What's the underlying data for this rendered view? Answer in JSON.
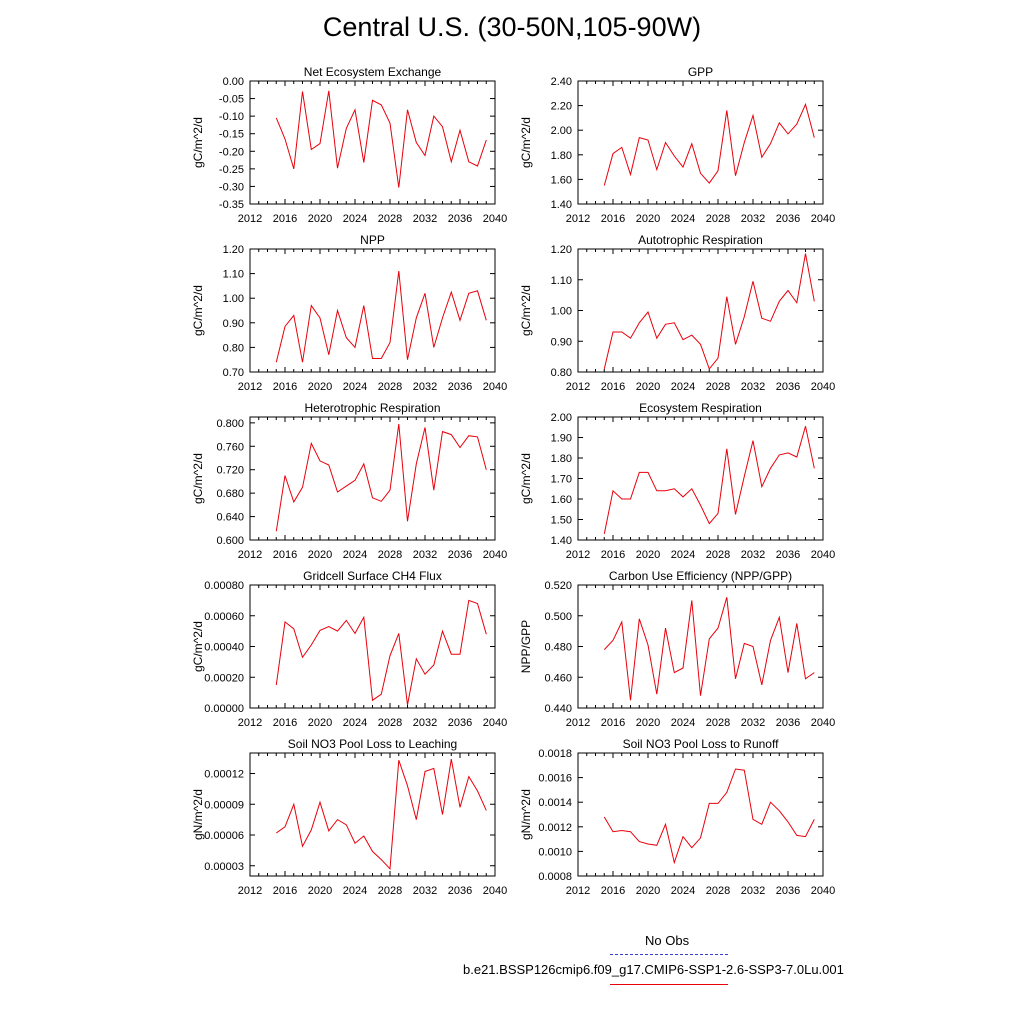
{
  "figure": {
    "title": "Central U.S. (30-50N,105-90W)",
    "series_color": "#e8000b",
    "obs_color": "#3b3bd6"
  },
  "legend": {
    "obs_label": "No Obs",
    "model_label": "b.e21.BSSP126cmip6.f09_g17.CMIP6-SSP1-2.6-SSP3-7.0Lu.001"
  },
  "chart_data": [
    {
      "type": "line",
      "title": "Net Ecosystem Exchange",
      "ylabel": "gC/m^2/d",
      "xlabel": "",
      "xlim": [
        2012,
        2040
      ],
      "xticks": [
        "2012",
        "2016",
        "2020",
        "2024",
        "2028",
        "2032",
        "2036",
        "2040"
      ],
      "ylim": [
        -0.35,
        0.0
      ],
      "yticks": [
        "0.00",
        "-0.05",
        "-0.10",
        "-0.15",
        "-0.20",
        "-0.25",
        "-0.30",
        "-0.35"
      ],
      "x": [
        2015,
        2016,
        2017,
        2018,
        2019,
        2020,
        2021,
        2022,
        2023,
        2024,
        2025,
        2026,
        2027,
        2028,
        2029,
        2030,
        2031,
        2032,
        2033,
        2034,
        2035,
        2036,
        2037,
        2038,
        2039
      ],
      "series": [
        {
          "values": [
            -0.105,
            -0.165,
            -0.25,
            -0.03,
            -0.195,
            -0.178,
            -0.028,
            -0.248,
            -0.135,
            -0.082,
            -0.232,
            -0.055,
            -0.068,
            -0.12,
            -0.303,
            -0.082,
            -0.175,
            -0.212,
            -0.1,
            -0.13,
            -0.23,
            -0.14,
            -0.23,
            -0.242,
            -0.168
          ]
        }
      ]
    },
    {
      "type": "line",
      "title": "GPP",
      "ylabel": "gC/m^2/d",
      "xlabel": "",
      "xlim": [
        2012,
        2040
      ],
      "xticks": [
        "2012",
        "2016",
        "2020",
        "2024",
        "2028",
        "2032",
        "2036",
        "2040"
      ],
      "ylim": [
        1.4,
        2.4
      ],
      "yticks": [
        "2.40",
        "2.20",
        "2.00",
        "1.80",
        "1.60",
        "1.40"
      ],
      "x": [
        2015,
        2016,
        2017,
        2018,
        2019,
        2020,
        2021,
        2022,
        2023,
        2024,
        2025,
        2026,
        2027,
        2028,
        2029,
        2030,
        2031,
        2032,
        2033,
        2034,
        2035,
        2036,
        2037,
        2038,
        2039
      ],
      "series": [
        {
          "values": [
            1.55,
            1.81,
            1.86,
            1.64,
            1.94,
            1.92,
            1.68,
            1.9,
            1.79,
            1.7,
            1.89,
            1.65,
            1.57,
            1.67,
            2.16,
            1.63,
            1.9,
            2.12,
            1.78,
            1.89,
            2.06,
            1.97,
            2.05,
            2.21,
            1.94
          ]
        }
      ]
    },
    {
      "type": "line",
      "title": "NPP",
      "ylabel": "gC/m^2/d",
      "xlabel": "",
      "xlim": [
        2012,
        2040
      ],
      "xticks": [
        "2012",
        "2016",
        "2020",
        "2024",
        "2028",
        "2032",
        "2036",
        "2040"
      ],
      "ylim": [
        0.7,
        1.2
      ],
      "yticks": [
        "1.20",
        "1.10",
        "1.00",
        "0.90",
        "0.80",
        "0.70"
      ],
      "x": [
        2015,
        2016,
        2017,
        2018,
        2019,
        2020,
        2021,
        2022,
        2023,
        2024,
        2025,
        2026,
        2027,
        2028,
        2029,
        2030,
        2031,
        2032,
        2033,
        2034,
        2035,
        2036,
        2037,
        2038,
        2039
      ],
      "series": [
        {
          "values": [
            0.74,
            0.885,
            0.93,
            0.74,
            0.97,
            0.92,
            0.77,
            0.95,
            0.84,
            0.8,
            0.97,
            0.755,
            0.755,
            0.82,
            1.11,
            0.75,
            0.92,
            1.02,
            0.8,
            0.92,
            1.025,
            0.91,
            1.02,
            1.03,
            0.91
          ]
        }
      ]
    },
    {
      "type": "line",
      "title": "Autotrophic Respiration",
      "ylabel": "gC/m^2/d",
      "xlabel": "",
      "xlim": [
        2012,
        2040
      ],
      "xticks": [
        "2012",
        "2016",
        "2020",
        "2024",
        "2028",
        "2032",
        "2036",
        "2040"
      ],
      "ylim": [
        0.8,
        1.2
      ],
      "yticks": [
        "1.20",
        "1.10",
        "1.00",
        "0.90",
        "0.80"
      ],
      "x": [
        2015,
        2016,
        2017,
        2018,
        2019,
        2020,
        2021,
        2022,
        2023,
        2024,
        2025,
        2026,
        2027,
        2028,
        2029,
        2030,
        2031,
        2032,
        2033,
        2034,
        2035,
        2036,
        2037,
        2038,
        2039
      ],
      "series": [
        {
          "values": [
            0.81,
            0.93,
            0.93,
            0.91,
            0.96,
            0.995,
            0.91,
            0.955,
            0.96,
            0.905,
            0.92,
            0.89,
            0.81,
            0.845,
            1.045,
            0.89,
            0.98,
            1.095,
            0.975,
            0.965,
            1.03,
            1.065,
            1.025,
            1.185,
            1.03
          ]
        }
      ]
    },
    {
      "type": "line",
      "title": "Heterotrophic Respiration",
      "ylabel": "gC/m^2/d",
      "xlabel": "",
      "xlim": [
        2012,
        2040
      ],
      "xticks": [
        "2012",
        "2016",
        "2020",
        "2024",
        "2028",
        "2032",
        "2036",
        "2040"
      ],
      "ylim": [
        0.6,
        0.81
      ],
      "yticks": [
        "0.800",
        "0.760",
        "0.720",
        "0.680",
        "0.640",
        "0.600"
      ],
      "x": [
        2015,
        2016,
        2017,
        2018,
        2019,
        2020,
        2021,
        2022,
        2023,
        2024,
        2025,
        2026,
        2027,
        2028,
        2029,
        2030,
        2031,
        2032,
        2033,
        2034,
        2035,
        2036,
        2037,
        2038,
        2039
      ],
      "series": [
        {
          "values": [
            0.615,
            0.71,
            0.665,
            0.69,
            0.765,
            0.735,
            0.728,
            0.682,
            0.692,
            0.702,
            0.73,
            0.672,
            0.666,
            0.685,
            0.798,
            0.632,
            0.73,
            0.792,
            0.685,
            0.785,
            0.78,
            0.758,
            0.778,
            0.776,
            0.72
          ]
        }
      ]
    },
    {
      "type": "line",
      "title": "Ecosystem Respiration",
      "ylabel": "gC/m^2/d",
      "xlabel": "",
      "xlim": [
        2012,
        2040
      ],
      "xticks": [
        "2012",
        "2016",
        "2020",
        "2024",
        "2028",
        "2032",
        "2036",
        "2040"
      ],
      "ylim": [
        1.4,
        2.0
      ],
      "yticks": [
        "2.00",
        "1.90",
        "1.80",
        "1.70",
        "1.60",
        "1.50",
        "1.40"
      ],
      "x": [
        2015,
        2016,
        2017,
        2018,
        2019,
        2020,
        2021,
        2022,
        2023,
        2024,
        2025,
        2026,
        2027,
        2028,
        2029,
        2030,
        2031,
        2032,
        2033,
        2034,
        2035,
        2036,
        2037,
        2038,
        2039
      ],
      "series": [
        {
          "values": [
            1.43,
            1.64,
            1.6,
            1.6,
            1.73,
            1.73,
            1.64,
            1.64,
            1.65,
            1.61,
            1.65,
            1.57,
            1.48,
            1.53,
            1.845,
            1.525,
            1.71,
            1.885,
            1.66,
            1.75,
            1.815,
            1.825,
            1.805,
            1.955,
            1.75
          ]
        }
      ]
    },
    {
      "type": "line",
      "title": "Gridcell Surface CH4 Flux",
      "ylabel": "gC/m^2/d",
      "xlabel": "",
      "xlim": [
        2012,
        2040
      ],
      "xticks": [
        "2012",
        "2016",
        "2020",
        "2024",
        "2028",
        "2032",
        "2036",
        "2040"
      ],
      "ylim": [
        0.0,
        0.0008
      ],
      "yticks": [
        "0.00080",
        "0.00060",
        "0.00040",
        "0.00020",
        "0.00000"
      ],
      "x": [
        2015,
        2016,
        2017,
        2018,
        2019,
        2020,
        2021,
        2022,
        2023,
        2024,
        2025,
        2026,
        2027,
        2028,
        2029,
        2030,
        2031,
        2032,
        2033,
        2034,
        2035,
        2036,
        2037,
        2038,
        2039
      ],
      "series": [
        {
          "values": [
            0.00015,
            0.00056,
            0.000515,
            0.00033,
            0.00041,
            0.000505,
            0.00053,
            0.0005,
            0.00057,
            0.000485,
            0.00059,
            5e-05,
            9e-05,
            0.00034,
            0.000485,
            2e-05,
            0.00032,
            0.00022,
            0.00028,
            0.0005,
            0.00035,
            0.00035,
            0.0007,
            0.00068,
            0.00048
          ]
        }
      ]
    },
    {
      "type": "line",
      "title": "Carbon Use Efficiency (NPP/GPP)",
      "ylabel": "NPP/GPP",
      "xlabel": "",
      "xlim": [
        2012,
        2040
      ],
      "xticks": [
        "2012",
        "2016",
        "2020",
        "2024",
        "2028",
        "2032",
        "2036",
        "2040"
      ],
      "ylim": [
        0.44,
        0.52
      ],
      "yticks": [
        "0.520",
        "0.500",
        "0.480",
        "0.460",
        "0.440"
      ],
      "x": [
        2015,
        2016,
        2017,
        2018,
        2019,
        2020,
        2021,
        2022,
        2023,
        2024,
        2025,
        2026,
        2027,
        2028,
        2029,
        2030,
        2031,
        2032,
        2033,
        2034,
        2035,
        2036,
        2037,
        2038,
        2039
      ],
      "series": [
        {
          "values": [
            0.478,
            0.484,
            0.496,
            0.445,
            0.498,
            0.481,
            0.449,
            0.492,
            0.463,
            0.466,
            0.51,
            0.448,
            0.485,
            0.492,
            0.512,
            0.459,
            0.482,
            0.48,
            0.455,
            0.484,
            0.499,
            0.463,
            0.495,
            0.459,
            0.463
          ]
        }
      ]
    },
    {
      "type": "line",
      "title": "Soil NO3 Pool Loss to Leaching",
      "ylabel": "gN/m^2/d",
      "xlabel": "",
      "xlim": [
        2012,
        2040
      ],
      "xticks": [
        "2012",
        "2016",
        "2020",
        "2024",
        "2028",
        "2032",
        "2036",
        "2040"
      ],
      "ylim": [
        2e-05,
        0.00014
      ],
      "yticks": [
        "0.00012",
        "0.00009",
        "0.00006",
        "0.00003"
      ],
      "x": [
        2015,
        2016,
        2017,
        2018,
        2019,
        2020,
        2021,
        2022,
        2023,
        2024,
        2025,
        2026,
        2027,
        2028,
        2029,
        2030,
        2031,
        2032,
        2033,
        2034,
        2035,
        2036,
        2037,
        2038,
        2039
      ],
      "series": [
        {
          "values": [
            6.2e-05,
            6.8e-05,
            9e-05,
            4.9e-05,
            6.5e-05,
            9.2e-05,
            6.4e-05,
            7.5e-05,
            7e-05,
            5.2e-05,
            5.9e-05,
            4.4e-05,
            3.6e-05,
            2.7e-05,
            0.000133,
            0.000108,
            7.5e-05,
            0.000122,
            0.000125,
            8e-05,
            0.000134,
            8.7e-05,
            0.000117,
            0.000103,
            8.4e-05
          ]
        }
      ]
    },
    {
      "type": "line",
      "title": "Soil NO3 Pool Loss to Runoff",
      "ylabel": "gN/m^2/d",
      "xlabel": "",
      "xlim": [
        2012,
        2040
      ],
      "xticks": [
        "2012",
        "2016",
        "2020",
        "2024",
        "2028",
        "2032",
        "2036",
        "2040"
      ],
      "ylim": [
        0.0008,
        0.0018
      ],
      "yticks": [
        "0.0018",
        "0.0016",
        "0.0014",
        "0.0012",
        "0.0010",
        "0.0008"
      ],
      "x": [
        2015,
        2016,
        2017,
        2018,
        2019,
        2020,
        2021,
        2022,
        2023,
        2024,
        2025,
        2026,
        2027,
        2028,
        2029,
        2030,
        2031,
        2032,
        2033,
        2034,
        2035,
        2036,
        2037,
        2038,
        2039
      ],
      "series": [
        {
          "values": [
            0.00128,
            0.00116,
            0.00117,
            0.00116,
            0.00108,
            0.00106,
            0.00105,
            0.00122,
            0.00091,
            0.00112,
            0.00103,
            0.00111,
            0.00139,
            0.00139,
            0.00148,
            0.00167,
            0.00166,
            0.00126,
            0.00122,
            0.0014,
            0.00133,
            0.00124,
            0.00113,
            0.00112,
            0.00126
          ]
        }
      ]
    }
  ]
}
